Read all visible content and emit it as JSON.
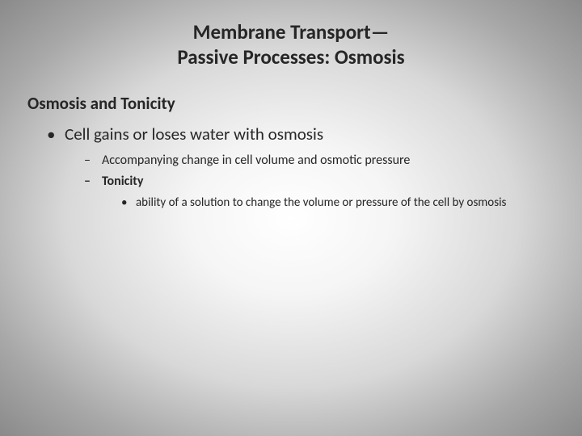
{
  "title_line1": "Membrane Transport—",
  "title_line2": "Passive Processes: Osmosis",
  "subtitle": "Osmosis and Tonicity",
  "bullet1": "Cell gains or loses water with osmosis",
  "sub1": "Accompanying change in cell volume and osmotic pressure",
  "sub2": "Tonicity",
  "subsub1": "ability of a solution to change the volume or pressure of the cell by osmosis",
  "colors": {
    "text": "#262626",
    "bg_center": "#ffffff",
    "bg_edge": "#8a8a8a"
  },
  "fontsize": {
    "title": 25,
    "subtitle": 21,
    "level1": 21,
    "level2": 16,
    "level3": 15
  }
}
